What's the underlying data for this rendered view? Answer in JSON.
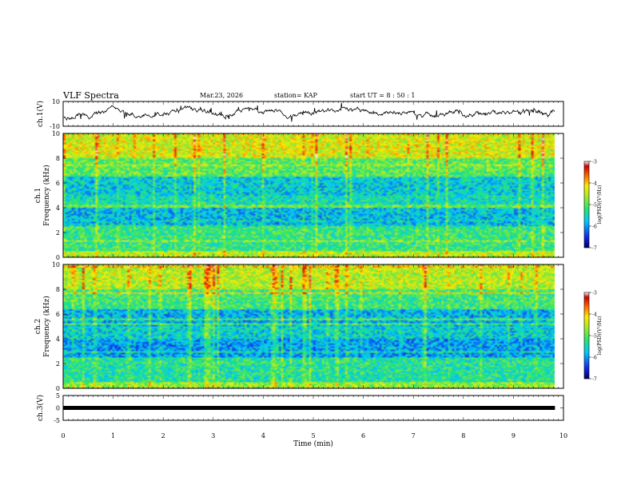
{
  "header": {
    "title": "VLF Spectra",
    "date": "Mar.23, 2026",
    "station": "station= KAP",
    "start": "start  UT =   8 : 50 : 1"
  },
  "chart_data": [
    {
      "type": "line",
      "name": "ch1-waveform",
      "ylabel": "ch.1(V)",
      "ylim": [
        -10,
        10
      ],
      "yticks": [
        "10",
        "-10"
      ],
      "xlim": [
        0,
        10
      ],
      "x_data_end": 9.83
    },
    {
      "type": "heatmap",
      "name": "ch1-spectrogram",
      "ylabel_channel": "ch.1",
      "ylabel": "Frequency (kHz)",
      "ylim": [
        0,
        10
      ],
      "yticks": [
        "0",
        "2",
        "4",
        "6",
        "8",
        "10"
      ],
      "xlim": [
        0,
        10
      ],
      "x_data_end": 9.83,
      "colorbar": {
        "label": "log(PSD)(V²/Hz)",
        "range": [
          -7,
          -3
        ],
        "ticks": [
          "-3",
          "-4",
          "-5",
          "-6",
          "-7"
        ]
      }
    },
    {
      "type": "heatmap",
      "name": "ch2-spectrogram",
      "ylabel_channel": "ch.2",
      "ylabel": "Frequency (kHz)",
      "ylim": [
        0,
        10
      ],
      "yticks": [
        "0",
        "2",
        "4",
        "6",
        "8",
        "10"
      ],
      "xlim": [
        0,
        10
      ],
      "x_data_end": 9.83,
      "colorbar": {
        "label": "log(PSD)(V²/Hz)",
        "range": [
          -7,
          -3
        ],
        "ticks": [
          "-3",
          "-4",
          "-5",
          "-6",
          "-7"
        ]
      }
    },
    {
      "type": "line",
      "name": "ch3-signal",
      "ylabel": "ch.3(V)",
      "ylim": [
        -5,
        5
      ],
      "yticks": [
        "5",
        "0",
        "-5"
      ],
      "xlim": [
        0,
        10
      ],
      "xlabel": "Time (min)",
      "xticks": [
        "0",
        "1",
        "2",
        "3",
        "4",
        "5",
        "6",
        "7",
        "8",
        "9",
        "10"
      ],
      "level": 0,
      "x_data_end": 9.83
    }
  ]
}
